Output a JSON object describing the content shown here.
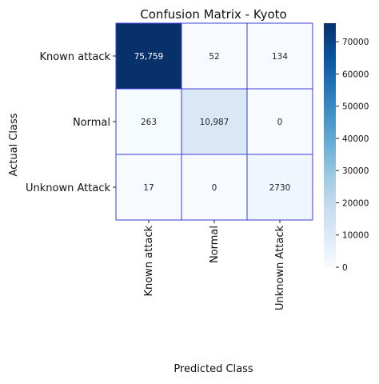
{
  "chart_data": {
    "type": "heatmap",
    "title": "Confusion Matrix - Kyoto",
    "xlabel": "Predicted Class",
    "ylabel": "Actual Class",
    "x_categories": [
      "Known attack",
      "Normal",
      "Unknown Attack"
    ],
    "y_categories": [
      "Known attack",
      "Normal",
      "Unknown Attack"
    ],
    "values": [
      [
        75759,
        52,
        134
      ],
      [
        263,
        10987,
        0
      ],
      [
        17,
        0,
        2730
      ]
    ],
    "cell_labels": [
      [
        "75,759",
        "52",
        "134"
      ],
      [
        "263",
        "10,987",
        "0"
      ],
      [
        "17",
        "0",
        "2730"
      ]
    ],
    "colorbar": {
      "min": 0,
      "max": 75759,
      "ticks": [
        0,
        10000,
        20000,
        30000,
        40000,
        50000,
        60000,
        70000
      ],
      "tick_labels": [
        "0",
        "10000",
        "20000",
        "30000",
        "40000",
        "50000",
        "60000",
        "70000"
      ],
      "colormap": "Blues"
    },
    "grid_line_color": "#3a3ad6",
    "colormap_stops": [
      "#f7fbff",
      "#deebf7",
      "#c6dbef",
      "#9ecae1",
      "#6baed6",
      "#4292c6",
      "#2171b5",
      "#08519c",
      "#08306b"
    ]
  }
}
